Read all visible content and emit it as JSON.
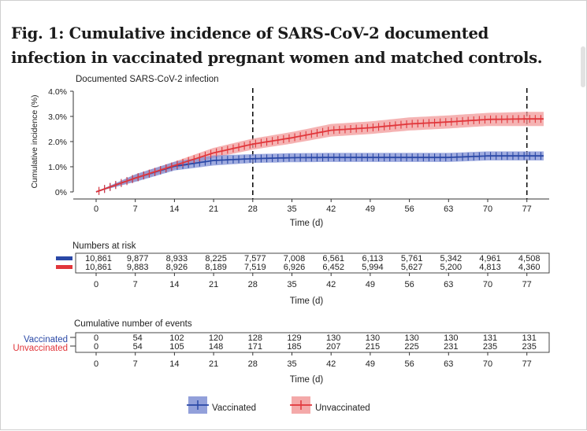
{
  "figure_title": "Fig. 1: Cumulative incidence of SARS-CoV-2 documented infection in vaccinated pregnant women and matched controls.",
  "colors": {
    "vaccinated": "#2a48a6",
    "vaccinated_band": "#7f8fd4",
    "unvaccinated": "#e1363b",
    "unvaccinated_band": "#f29a9a"
  },
  "chart_data": {
    "type": "line",
    "title": "Documented SARS-CoV-2 infection",
    "xlabel": "Time (d)",
    "ylabel": "Cumulative incidence (%)",
    "xlim": [
      0,
      77
    ],
    "ylim": [
      0,
      4
    ],
    "x_ticks": [
      "0",
      "7",
      "14",
      "21",
      "28",
      "35",
      "42",
      "49",
      "56",
      "63",
      "70",
      "77"
    ],
    "y_ticks": [
      "0%",
      "1.0%",
      "2.0%",
      "3.0%",
      "4.0%"
    ],
    "reference_lines_x": [
      28,
      77
    ],
    "grid": false,
    "legend_position": "bottom-center",
    "x": [
      0,
      7,
      14,
      21,
      28,
      35,
      42,
      49,
      56,
      63,
      70,
      77
    ],
    "series": [
      {
        "name": "Vaccinated",
        "color": "#2a48a6",
        "values": [
          0,
          0.55,
          1.02,
          1.25,
          1.32,
          1.36,
          1.37,
          1.37,
          1.37,
          1.37,
          1.43,
          1.43
        ],
        "ci_low": [
          0,
          0.4,
          0.85,
          1.05,
          1.15,
          1.18,
          1.19,
          1.19,
          1.19,
          1.19,
          1.25,
          1.25
        ],
        "ci_high": [
          0,
          0.7,
          1.2,
          1.45,
          1.5,
          1.54,
          1.55,
          1.55,
          1.55,
          1.55,
          1.61,
          1.61
        ]
      },
      {
        "name": "Unvaccinated",
        "color": "#e1363b",
        "values": [
          0,
          0.55,
          1.05,
          1.55,
          1.9,
          2.15,
          2.45,
          2.55,
          2.7,
          2.78,
          2.88,
          2.9
        ],
        "ci_low": [
          0,
          0.42,
          0.9,
          1.35,
          1.68,
          1.92,
          2.2,
          2.3,
          2.44,
          2.52,
          2.62,
          2.62
        ],
        "ci_high": [
          0,
          0.68,
          1.2,
          1.75,
          2.12,
          2.38,
          2.7,
          2.8,
          2.96,
          3.04,
          3.14,
          3.18
        ]
      }
    ]
  },
  "risk_table": {
    "title": "Numbers at risk",
    "xlabel": "Time (d)",
    "days": [
      "0",
      "7",
      "14",
      "21",
      "28",
      "35",
      "42",
      "49",
      "56",
      "63",
      "70",
      "77"
    ],
    "rows": [
      {
        "name": "Vaccinated",
        "values": [
          "10,861",
          "9,877",
          "8,933",
          "8,225",
          "7,577",
          "7,008",
          "6,561",
          "6,113",
          "5,761",
          "5,342",
          "4,961",
          "4,508"
        ]
      },
      {
        "name": "Unvaccinated",
        "values": [
          "10,861",
          "9,883",
          "8,926",
          "8,189",
          "7,519",
          "6,926",
          "6,452",
          "5,994",
          "5,627",
          "5,200",
          "4,813",
          "4,360"
        ]
      }
    ]
  },
  "events_table": {
    "title": "Cumulative number of events",
    "xlabel": "Time (d)",
    "days": [
      "0",
      "7",
      "14",
      "21",
      "28",
      "35",
      "42",
      "49",
      "56",
      "63",
      "70",
      "77"
    ],
    "rows": [
      {
        "name": "Vaccinated",
        "values": [
          "0",
          "54",
          "102",
          "120",
          "128",
          "129",
          "130",
          "130",
          "130",
          "130",
          "131",
          "131"
        ]
      },
      {
        "name": "Unvaccinated",
        "values": [
          "0",
          "54",
          "105",
          "148",
          "171",
          "185",
          "207",
          "215",
          "225",
          "231",
          "235",
          "235"
        ]
      }
    ]
  },
  "legend": {
    "vaccinated_label": "Vaccinated",
    "unvaccinated_label": "Unvaccinated"
  }
}
